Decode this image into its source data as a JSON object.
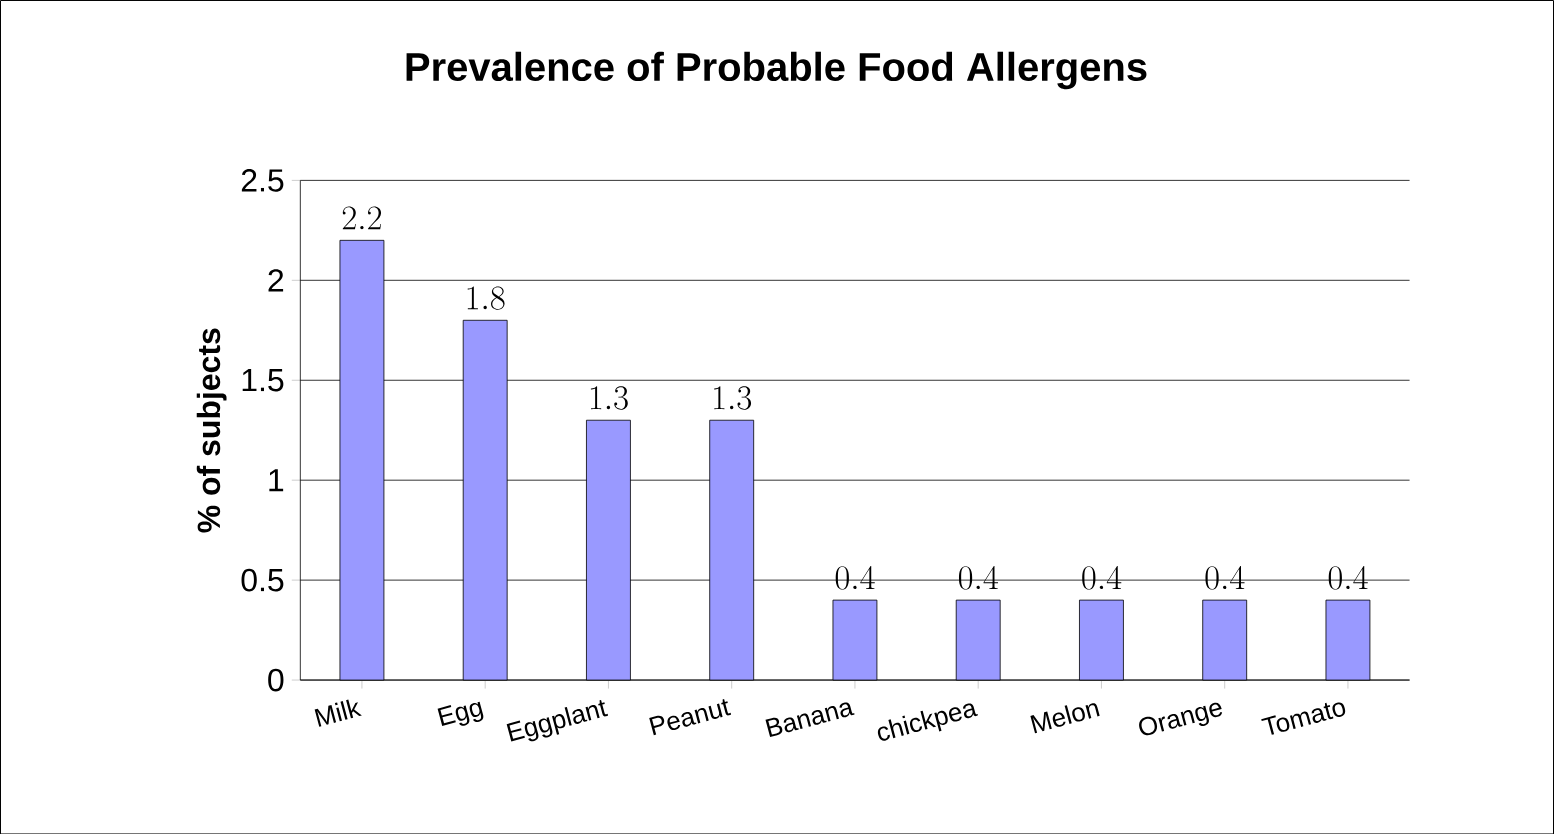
{
  "chart_data": {
    "type": "bar",
    "title": "Prevalence of Probable Food Allergens",
    "ylabel": "% of subjects",
    "categories": [
      "Milk",
      "Egg",
      "Eggplant",
      "Peanut",
      "Banana",
      "chickpea",
      "Melon",
      "Orange",
      "Tomato"
    ],
    "values": [
      2.2,
      1.8,
      1.3,
      1.3,
      0.4,
      0.4,
      0.4,
      0.4,
      0.4
    ],
    "color": "#9999ff",
    "ylim": [
      0,
      2.5
    ],
    "yticks": [
      0,
      0.5,
      1,
      1.5,
      2,
      2.5
    ],
    "grid": "y",
    "data_labels": true
  }
}
